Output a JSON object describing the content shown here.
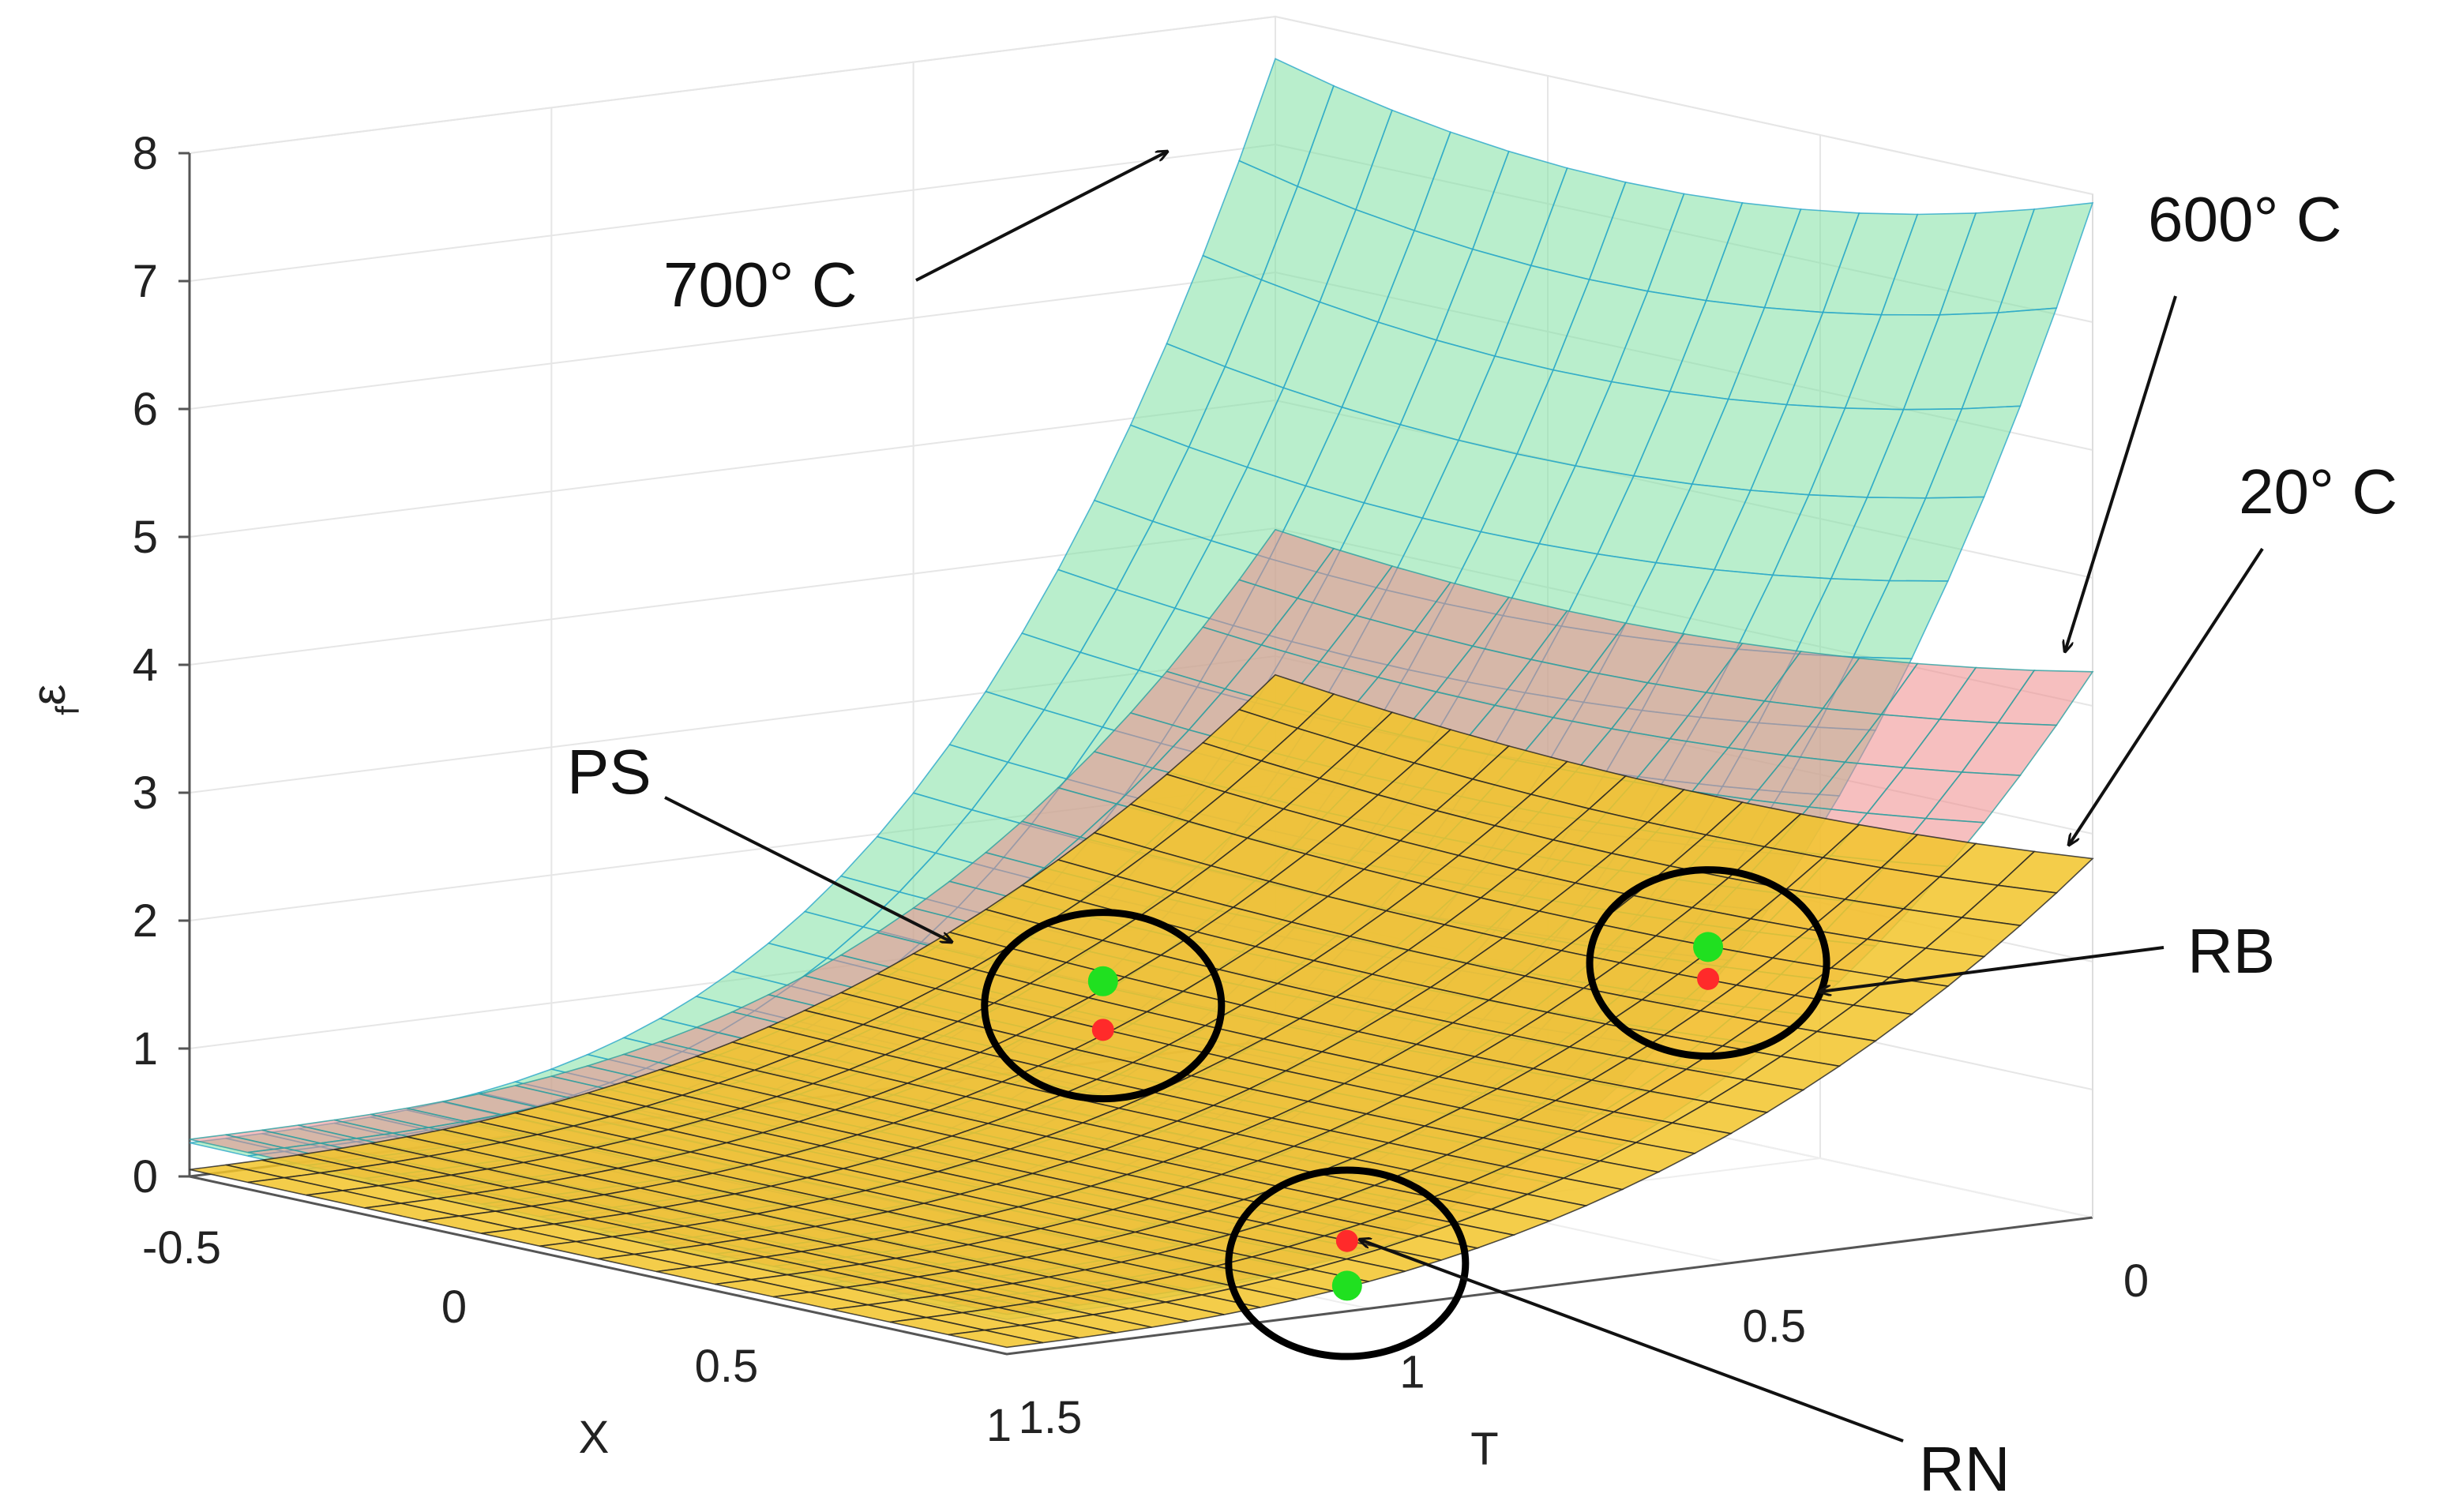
{
  "chart_data": {
    "type": "surface",
    "title": "",
    "xlabel": "X",
    "ylabel": "T",
    "zlabel": "ε",
    "zlabel_sub": "f",
    "xlim": [
      -0.5,
      1
    ],
    "ylim": [
      0,
      1.5
    ],
    "zlim": [
      0,
      8
    ],
    "x_ticks": [
      {
        "value": -0.5,
        "label": "-0.5"
      },
      {
        "value": 0,
        "label": "0"
      },
      {
        "value": 0.5,
        "label": "0.5"
      },
      {
        "value": 1,
        "label": "1"
      }
    ],
    "y_ticks": [
      {
        "value": 0,
        "label": "0"
      },
      {
        "value": 0.5,
        "label": "0.5"
      },
      {
        "value": 1,
        "label": "1"
      },
      {
        "value": 1.5,
        "label": "1.5"
      }
    ],
    "z_ticks": [
      {
        "value": 0,
        "label": "0"
      },
      {
        "value": 1,
        "label": "1"
      },
      {
        "value": 2,
        "label": "2"
      },
      {
        "value": 3,
        "label": "3"
      },
      {
        "value": 4,
        "label": "4"
      },
      {
        "value": 5,
        "label": "5"
      },
      {
        "value": 6,
        "label": "6"
      },
      {
        "value": 7,
        "label": "7"
      },
      {
        "value": 8,
        "label": "8"
      }
    ],
    "grid": true,
    "series": [
      {
        "name": "700° C",
        "fill": "#7fe0a3",
        "edge": "#2aa8c9",
        "t0": 7.3,
        "t15": 0.25,
        "k": 3.2,
        "xc": 0.15
      },
      {
        "name": "600° C",
        "fill": "#ef8a8a",
        "edge": "#2aa0a0",
        "t0": 3.85,
        "t15": 0.28,
        "k": 3.0,
        "xc": 0.05
      },
      {
        "name": "20° C",
        "fill": "#f2c42a",
        "edge": "#222222",
        "t0": 2.65,
        "t15": 0.05,
        "k": 2.6,
        "xc": 0.3
      }
    ],
    "annotations": [
      {
        "label": "700° C"
      },
      {
        "label": "600° C"
      },
      {
        "label": "20° C"
      },
      {
        "label": "PS"
      },
      {
        "label": "RB"
      },
      {
        "label": "RN"
      }
    ],
    "points": [
      {
        "id": "PS",
        "x": 0.22,
        "t": 0.78,
        "z_green": 1.68,
        "z_red": 1.3
      },
      {
        "id": "RB",
        "x": 0.56,
        "t": 0.2,
        "z_green": 1.85,
        "z_red": 1.6
      },
      {
        "id": "RN",
        "x": 1.0,
        "t": 1.03,
        "z_green": 0.2,
        "z_red": 0.55
      }
    ]
  }
}
